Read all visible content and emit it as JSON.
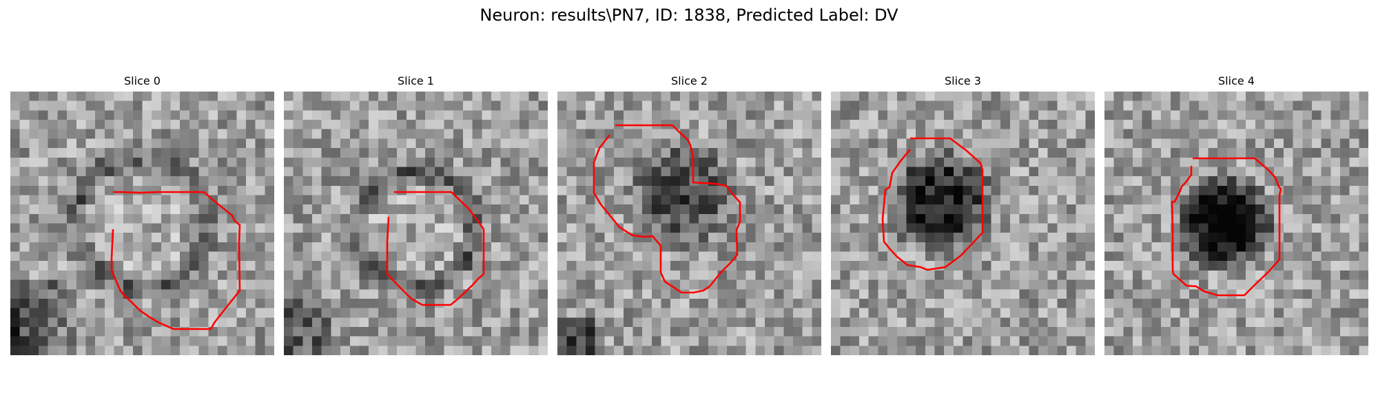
{
  "figure": {
    "title": "Neuron: results\\PN7, ID: 1838, Predicted Label: DV"
  },
  "panels": [
    {
      "title": "Slice 0"
    },
    {
      "title": "Slice 1"
    },
    {
      "title": "Slice 2"
    },
    {
      "title": "Slice 3"
    },
    {
      "title": "Slice 4"
    }
  ],
  "colors": {
    "contour": "#ff0000",
    "background": "#ffffff"
  }
}
